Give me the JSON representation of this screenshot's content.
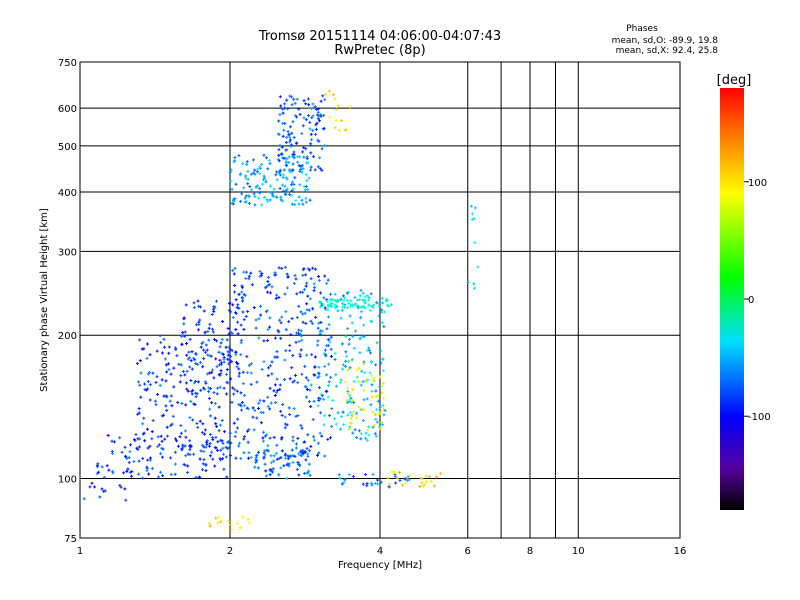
{
  "chart_data": {
    "type": "scatter",
    "title": "Tromsø 20151114 04:06:00-04:07:43",
    "subtitle": "RwPretec (8p)",
    "xlabel": "Frequency [MHz]",
    "ylabel": "Stationary phase Virtual Height [km]",
    "xscale": "log",
    "yscale": "log",
    "xlim": [
      1,
      16
    ],
    "ylim": [
      75,
      750
    ],
    "xticks": [
      "1",
      "2",
      "4",
      "6",
      "8",
      "10",
      "16"
    ],
    "yticks": [
      "75",
      "100",
      "200",
      "300",
      "400",
      "500",
      "600",
      "750"
    ],
    "grid": true,
    "stats": {
      "heading": "Phases",
      "line1": "mean, sd,O: -89.9, 19.8",
      "line2": "mean, sd,X:  92.4, 25.8"
    },
    "colorbar": {
      "label": "[deg]",
      "min": -180,
      "max": 180,
      "ticks": [
        "100",
        "0",
        "-100"
      ],
      "tick_values": [
        100,
        0,
        -100
      ]
    },
    "clusters": [
      {
        "f1": 1.08,
        "f2": 2.0,
        "h1": 100,
        "h2": 125,
        "ph": -110,
        "n": 130
      },
      {
        "f1": 1.3,
        "f2": 2.0,
        "h1": 115,
        "h2": 200,
        "ph": -110,
        "n": 180
      },
      {
        "f1": 1.6,
        "f2": 2.1,
        "h1": 150,
        "h2": 240,
        "ph": -115,
        "n": 110
      },
      {
        "f1": 2.0,
        "f2": 3.2,
        "h1": 110,
        "h2": 280,
        "ph": -105,
        "n": 360
      },
      {
        "f1": 2.2,
        "f2": 2.9,
        "h1": 100,
        "h2": 115,
        "ph": -95,
        "n": 70
      },
      {
        "f1": 3.0,
        "f2": 4.1,
        "h1": 120,
        "h2": 250,
        "ph": -70,
        "n": 180
      },
      {
        "f1": 3.0,
        "f2": 4.3,
        "h1": 228,
        "h2": 238,
        "ph": -40,
        "n": 60
      },
      {
        "f1": 3.4,
        "f2": 4.1,
        "h1": 125,
        "h2": 180,
        "ph": 90,
        "n": 45
      },
      {
        "f1": 3.2,
        "f2": 4.6,
        "h1": 96,
        "h2": 102,
        "ph": -90,
        "n": 30
      },
      {
        "f1": 4.1,
        "f2": 5.3,
        "h1": 96,
        "h2": 104,
        "ph": 110,
        "n": 25
      },
      {
        "f1": 1.8,
        "f2": 2.2,
        "h1": 78,
        "h2": 83,
        "ph": 110,
        "n": 14
      },
      {
        "f1": 2.0,
        "f2": 2.9,
        "h1": 375,
        "h2": 480,
        "ph": -80,
        "n": 150
      },
      {
        "f1": 2.5,
        "f2": 3.1,
        "h1": 440,
        "h2": 640,
        "ph": -100,
        "n": 130
      },
      {
        "f1": 3.1,
        "f2": 3.5,
        "h1": 530,
        "h2": 660,
        "ph": 110,
        "n": 14
      },
      {
        "f1": 6.0,
        "f2": 6.3,
        "h1": 250,
        "h2": 390,
        "ph": -60,
        "n": 10
      },
      {
        "f1": 1.0,
        "f2": 1.25,
        "h1": 90,
        "h2": 100,
        "ph": -120,
        "n": 12
      }
    ]
  }
}
